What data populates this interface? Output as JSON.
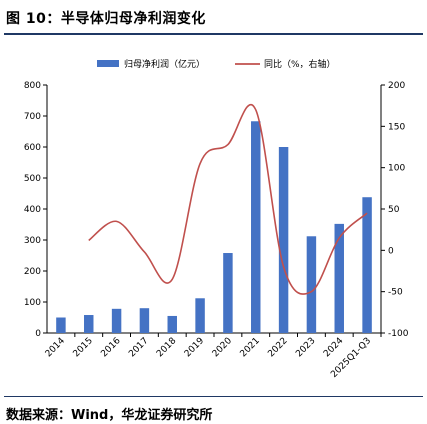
{
  "header": {
    "title": "图 10：半导体归母净利润变化"
  },
  "footer": {
    "source": "数据来源：Wind，华龙证券研究所"
  },
  "chart_data": {
    "type": "bar",
    "categories": [
      "2014",
      "2015",
      "2016",
      "2017",
      "2018",
      "2019",
      "2020",
      "2021",
      "2022",
      "2023",
      "2024",
      "2025Q1-Q3"
    ],
    "series": [
      {
        "name": "归母净利润（亿元）",
        "type": "bar",
        "axis": "left",
        "color": "#4472c4",
        "values": [
          50,
          58,
          78,
          80,
          55,
          112,
          258,
          683,
          600,
          312,
          352,
          438
        ]
      },
      {
        "name": "同比（%，右轴）",
        "type": "line",
        "axis": "right",
        "color": "#c0504d",
        "values": [
          null,
          12,
          35,
          -2,
          -35,
          105,
          128,
          170,
          -20,
          -50,
          15,
          45
        ]
      }
    ],
    "y_left": {
      "min": 0,
      "max": 800,
      "ticks": [
        0,
        100,
        200,
        300,
        400,
        500,
        600,
        700,
        800
      ]
    },
    "y_right": {
      "min": -100,
      "max": 200,
      "ticks": [
        -100,
        -50,
        0,
        50,
        100,
        150,
        200
      ]
    },
    "legend": {
      "placement": "top"
    },
    "grid": false
  }
}
